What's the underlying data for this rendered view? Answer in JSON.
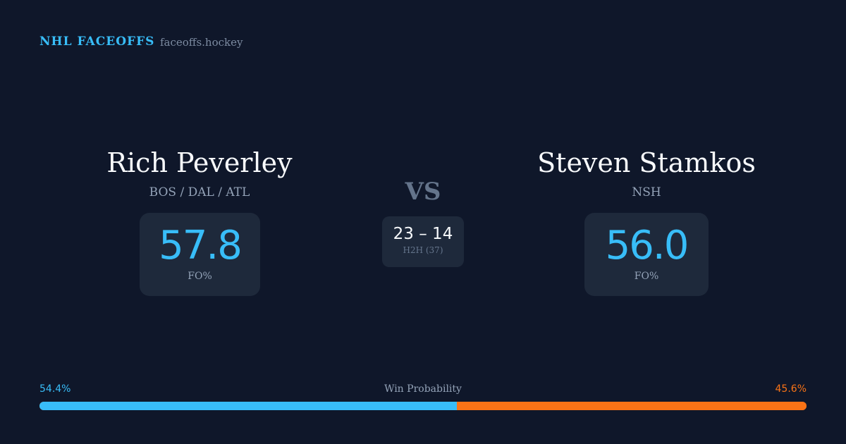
{
  "header": {
    "brand": "NHL FACEOFFS",
    "domain": "faceoffs.hockey"
  },
  "player_left": {
    "name": "Rich Peverley",
    "teams": "BOS / DAL / ATL",
    "fo_pct": "57.8",
    "fo_label": "FO%"
  },
  "player_right": {
    "name": "Steven Stamkos",
    "teams": "NSH",
    "fo_pct": "56.0",
    "fo_label": "FO%"
  },
  "matchup": {
    "vs": "VS",
    "h2h_score": "23 – 14",
    "h2h_label": "H2H (37)"
  },
  "win_probability": {
    "label": "Win Probability",
    "left": "54.4%",
    "right": "45.6%",
    "left_value": 54.4,
    "right_value": 45.6,
    "left_color": "#38bdf8",
    "right_color": "#f97316"
  }
}
